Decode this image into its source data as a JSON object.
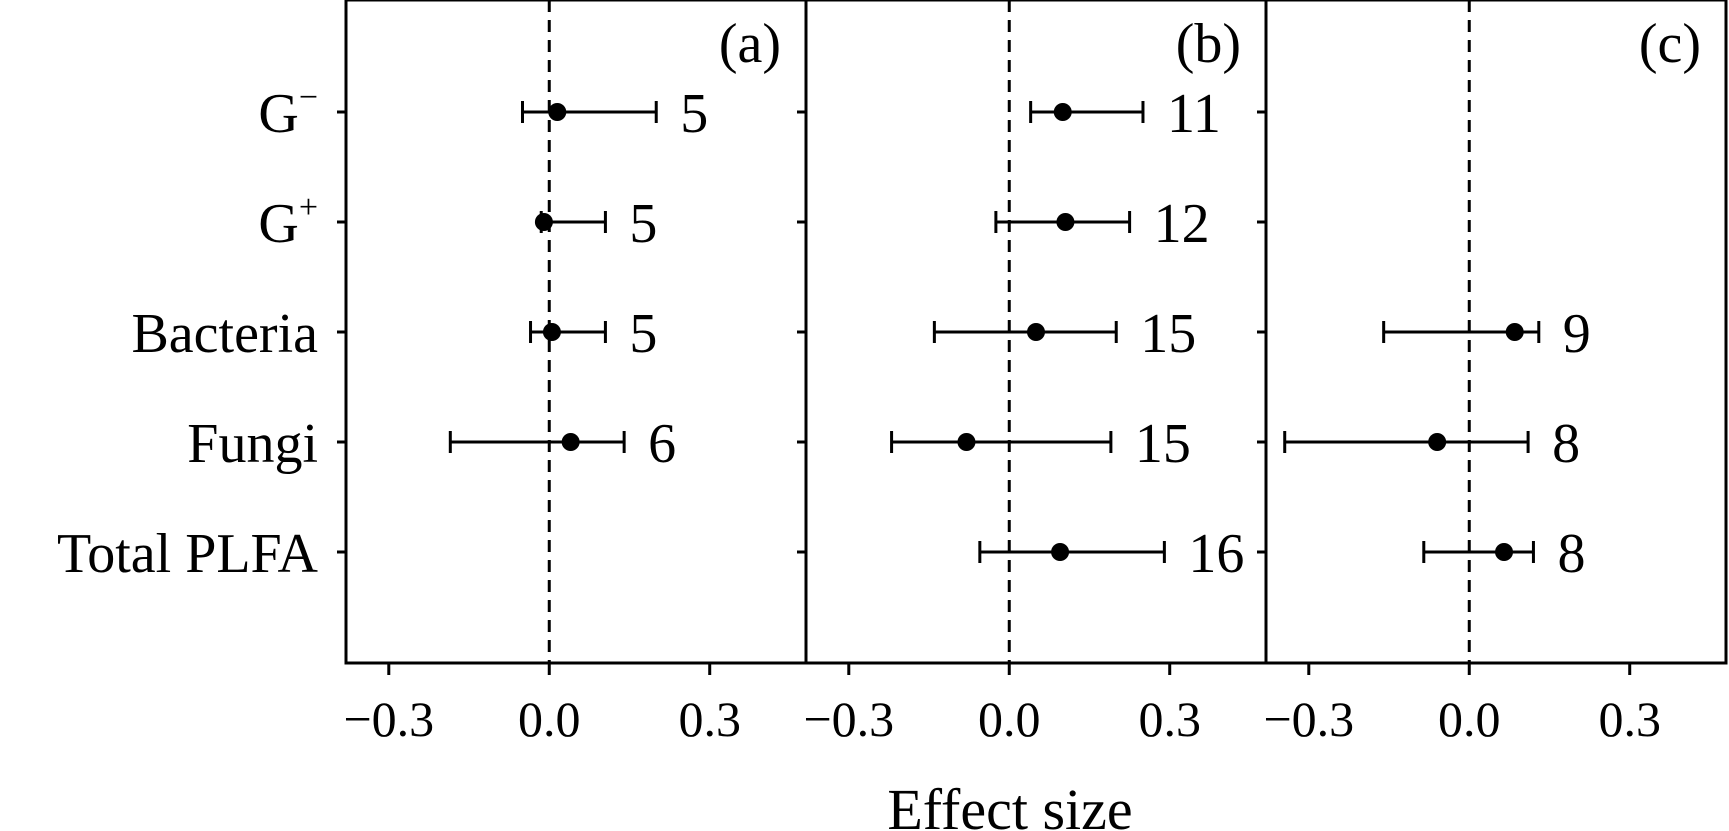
{
  "chart_data": {
    "type": "forest",
    "xlabel": "Effect size",
    "categories": [
      "G−",
      "G+",
      "Bacteria",
      "Fungi",
      "Total PLFA"
    ],
    "category_parts": [
      {
        "base": "G",
        "sup": "−"
      },
      {
        "base": "G",
        "sup": "+"
      },
      {
        "base": "Bacteria",
        "sup": ""
      },
      {
        "base": "Fungi",
        "sup": ""
      },
      {
        "base": "Total PLFA",
        "sup": ""
      }
    ],
    "xlim": [
      -0.38,
      0.48
    ],
    "xticks": [
      -0.3,
      0.0,
      0.3
    ],
    "xtick_labels": [
      "−0.3",
      "0.0",
      "0.3"
    ],
    "reference_line": 0.0,
    "panels": [
      {
        "label": "(a)",
        "points": [
          {
            "category": "G−",
            "mean": 0.015,
            "lower": -0.05,
            "upper": 0.2,
            "n": "5"
          },
          {
            "category": "G+",
            "mean": -0.01,
            "lower": -0.015,
            "upper": 0.105,
            "n": "5"
          },
          {
            "category": "Bacteria",
            "mean": 0.005,
            "lower": -0.035,
            "upper": 0.105,
            "n": "5"
          },
          {
            "category": "Fungi",
            "mean": 0.04,
            "lower": -0.185,
            "upper": 0.14,
            "n": "6"
          }
        ]
      },
      {
        "label": "(b)",
        "points": [
          {
            "category": "G−",
            "mean": 0.1,
            "lower": 0.04,
            "upper": 0.25,
            "n": "11"
          },
          {
            "category": "G+",
            "mean": 0.105,
            "lower": -0.025,
            "upper": 0.225,
            "n": "12"
          },
          {
            "category": "Bacteria",
            "mean": 0.05,
            "lower": -0.14,
            "upper": 0.2,
            "n": "15"
          },
          {
            "category": "Fungi",
            "mean": -0.08,
            "lower": -0.22,
            "upper": 0.19,
            "n": "15"
          },
          {
            "category": "Total PLFA",
            "mean": 0.095,
            "lower": -0.055,
            "upper": 0.29,
            "n": "16"
          }
        ]
      },
      {
        "label": "(c)",
        "points": [
          {
            "category": "Bacteria",
            "mean": 0.085,
            "lower": -0.16,
            "upper": 0.13,
            "n": "9"
          },
          {
            "category": "Fungi",
            "mean": -0.06,
            "lower": -0.345,
            "upper": 0.11,
            "n": "8"
          },
          {
            "category": "Total PLFA",
            "mean": 0.065,
            "lower": -0.085,
            "upper": 0.12,
            "n": "8"
          }
        ]
      }
    ]
  }
}
